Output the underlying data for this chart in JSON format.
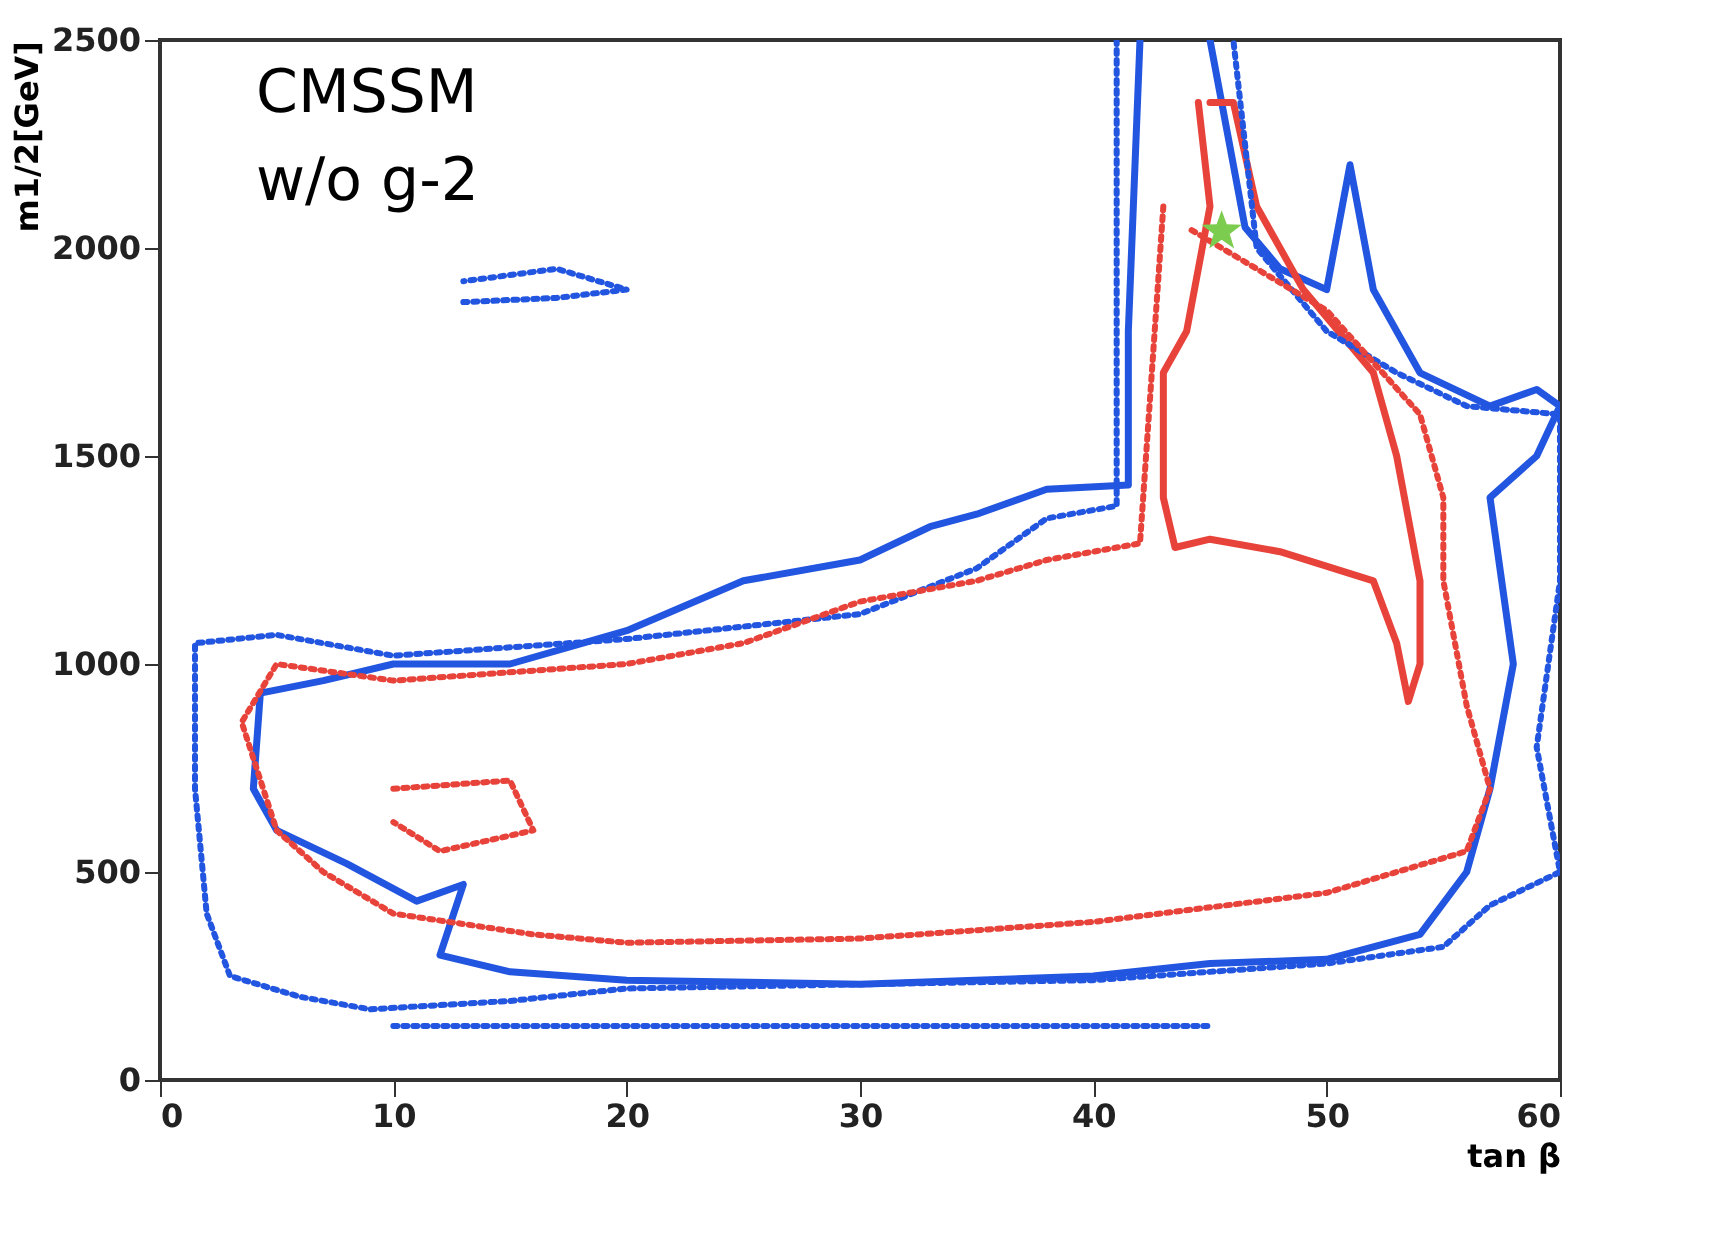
{
  "chart_data": {
    "type": "line",
    "xlabel": "tan β",
    "ylabel": "m1/2[GeV]",
    "annotations": [
      "CMSSM",
      "w/o g-2"
    ],
    "xlim": [
      0,
      60
    ],
    "ylim": [
      0,
      2500
    ],
    "xticks": [
      0,
      10,
      20,
      30,
      40,
      50,
      60
    ],
    "yticks": [
      0,
      500,
      1000,
      1500,
      2000,
      2500
    ],
    "grid": false,
    "series": [
      {
        "color": "#2255e0",
        "line_style": "solid",
        "x": [
          42,
          41.5,
          41.5,
          38,
          35,
          33,
          30,
          25,
          20,
          15,
          10,
          7,
          4.3,
          4,
          5,
          8,
          11,
          13,
          12,
          15,
          20,
          30,
          40,
          45,
          50,
          54,
          56,
          57,
          58,
          57,
          59,
          60,
          59,
          57,
          54,
          52,
          51,
          50,
          48,
          46.5,
          45
        ],
        "values": [
          2500,
          1800,
          1430,
          1420,
          1360,
          1330,
          1250,
          1200,
          1080,
          1000,
          1000,
          960,
          930,
          700,
          600,
          520,
          430,
          470,
          300,
          260,
          240,
          230,
          250,
          280,
          290,
          350,
          500,
          700,
          1000,
          1400,
          1500,
          1620,
          1660,
          1620,
          1700,
          1900,
          2200,
          1900,
          1950,
          2050,
          2500
        ]
      },
      {
        "color": "#e8433a",
        "line_style": "solid",
        "x": [
          44.5,
          45,
          44,
          43,
          43,
          43.5,
          45,
          48,
          52,
          53,
          53.5,
          54,
          54,
          53,
          52,
          49,
          47,
          46,
          45
        ],
        "values": [
          2350,
          2100,
          1800,
          1700,
          1400,
          1280,
          1300,
          1270,
          1200,
          1050,
          910,
          1000,
          1200,
          1500,
          1700,
          1900,
          2100,
          2350,
          2350
        ]
      },
      {
        "color": "#2255e0",
        "line_style": "dotted",
        "x": [
          41,
          41,
          38,
          35,
          30,
          20,
          10,
          5,
          1.5,
          1.5,
          2,
          3,
          6,
          9,
          15,
          20,
          30,
          40,
          50,
          55,
          57,
          60,
          59,
          60,
          60,
          56,
          53,
          50,
          47,
          46
        ],
        "values": [
          2500,
          1380,
          1350,
          1230,
          1120,
          1060,
          1020,
          1070,
          1050,
          700,
          400,
          250,
          200,
          170,
          190,
          220,
          230,
          240,
          280,
          320,
          420,
          500,
          800,
          1200,
          1600,
          1620,
          1700,
          1800,
          2000,
          2500
        ]
      },
      {
        "color": "#2255e0",
        "line_style": "dotted",
        "x": [
          13,
          17,
          20,
          17,
          13
        ],
        "values": [
          1870,
          1880,
          1900,
          1950,
          1920
        ]
      },
      {
        "color": "#2255e0",
        "line_style": "dotted",
        "x": [
          10,
          45
        ],
        "values": [
          130,
          130
        ]
      },
      {
        "color": "#e8433a",
        "line_style": "dotted",
        "x": [
          43,
          42,
          38,
          35,
          30,
          25,
          20,
          10,
          5,
          3.5,
          5,
          7,
          10,
          16,
          20,
          30,
          40,
          50,
          56,
          57,
          56,
          55,
          55,
          54,
          50,
          44
        ],
        "values": [
          2100,
          1290,
          1250,
          1200,
          1150,
          1050,
          1000,
          960,
          1000,
          860,
          600,
          500,
          400,
          350,
          330,
          340,
          380,
          450,
          550,
          700,
          900,
          1200,
          1400,
          1600,
          1850,
          2050
        ]
      },
      {
        "color": "#e8433a",
        "line_style": "dotted",
        "x": [
          10,
          15,
          16,
          12,
          10
        ],
        "values": [
          700,
          720,
          600,
          550,
          620
        ]
      },
      {
        "type": "scatter",
        "marker": "star",
        "color": "#7ccc4f",
        "x": [
          45.5
        ],
        "values": [
          2040
        ]
      }
    ]
  }
}
